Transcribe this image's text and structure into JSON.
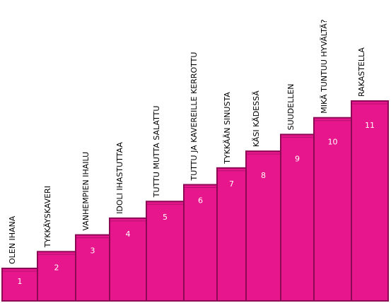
{
  "chart_data": {
    "type": "bar",
    "title": "",
    "xlabel": "",
    "ylabel": "",
    "ylim": [
      0,
      11
    ],
    "grid": false,
    "bar_color": "#e8168c",
    "bar_border_color": "#8c0a55",
    "categories": [
      "OLEN IHANA",
      "TYKKÄYSKAVERI",
      "VANHEMPIEN IHAILU",
      "IDOLI  IHASTUTTAA",
      "TUTTU MUTTA SALATTU",
      "TUTTU JA KAVEREILLE KERROTTU",
      "TYKKÄÄN SINUSTA",
      "KÄSI KÄDESSÄ",
      "SUUDELLEN",
      "MIKÄ TUNTUU HYVÄLTÄ?",
      "RAKASTELLA"
    ],
    "values": [
      1,
      2,
      3,
      4,
      5,
      6,
      7,
      8,
      9,
      10,
      11
    ],
    "data_labels": [
      "1",
      "2",
      "3",
      "4",
      "5",
      "6",
      "7",
      "8",
      "9",
      "10",
      "11"
    ]
  }
}
